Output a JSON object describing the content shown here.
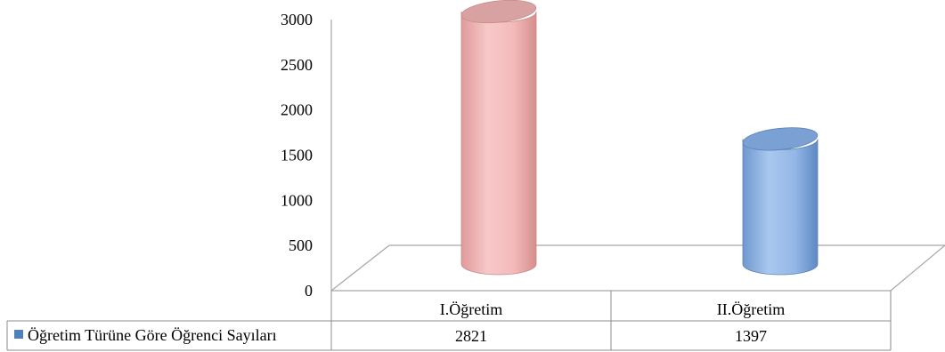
{
  "chart_data": {
    "type": "bar",
    "style": "3d-cylinder",
    "categories": [
      "I.Öğretim",
      "II.Öğretim"
    ],
    "series": [
      {
        "name": "Öğretim Türüne Göre Öğrenci Sayıları",
        "values": [
          2821,
          1397
        ]
      }
    ],
    "bar_colors": [
      "#f4b8b8",
      "#8fb4e3"
    ],
    "legend_marker_color": "#4f81bd",
    "ylim": [
      0,
      3000
    ],
    "y_ticks": [
      0,
      500,
      1000,
      1500,
      2000,
      2500,
      3000
    ],
    "grid": false,
    "data_table": true,
    "title": "",
    "xlabel": "",
    "ylabel": ""
  }
}
